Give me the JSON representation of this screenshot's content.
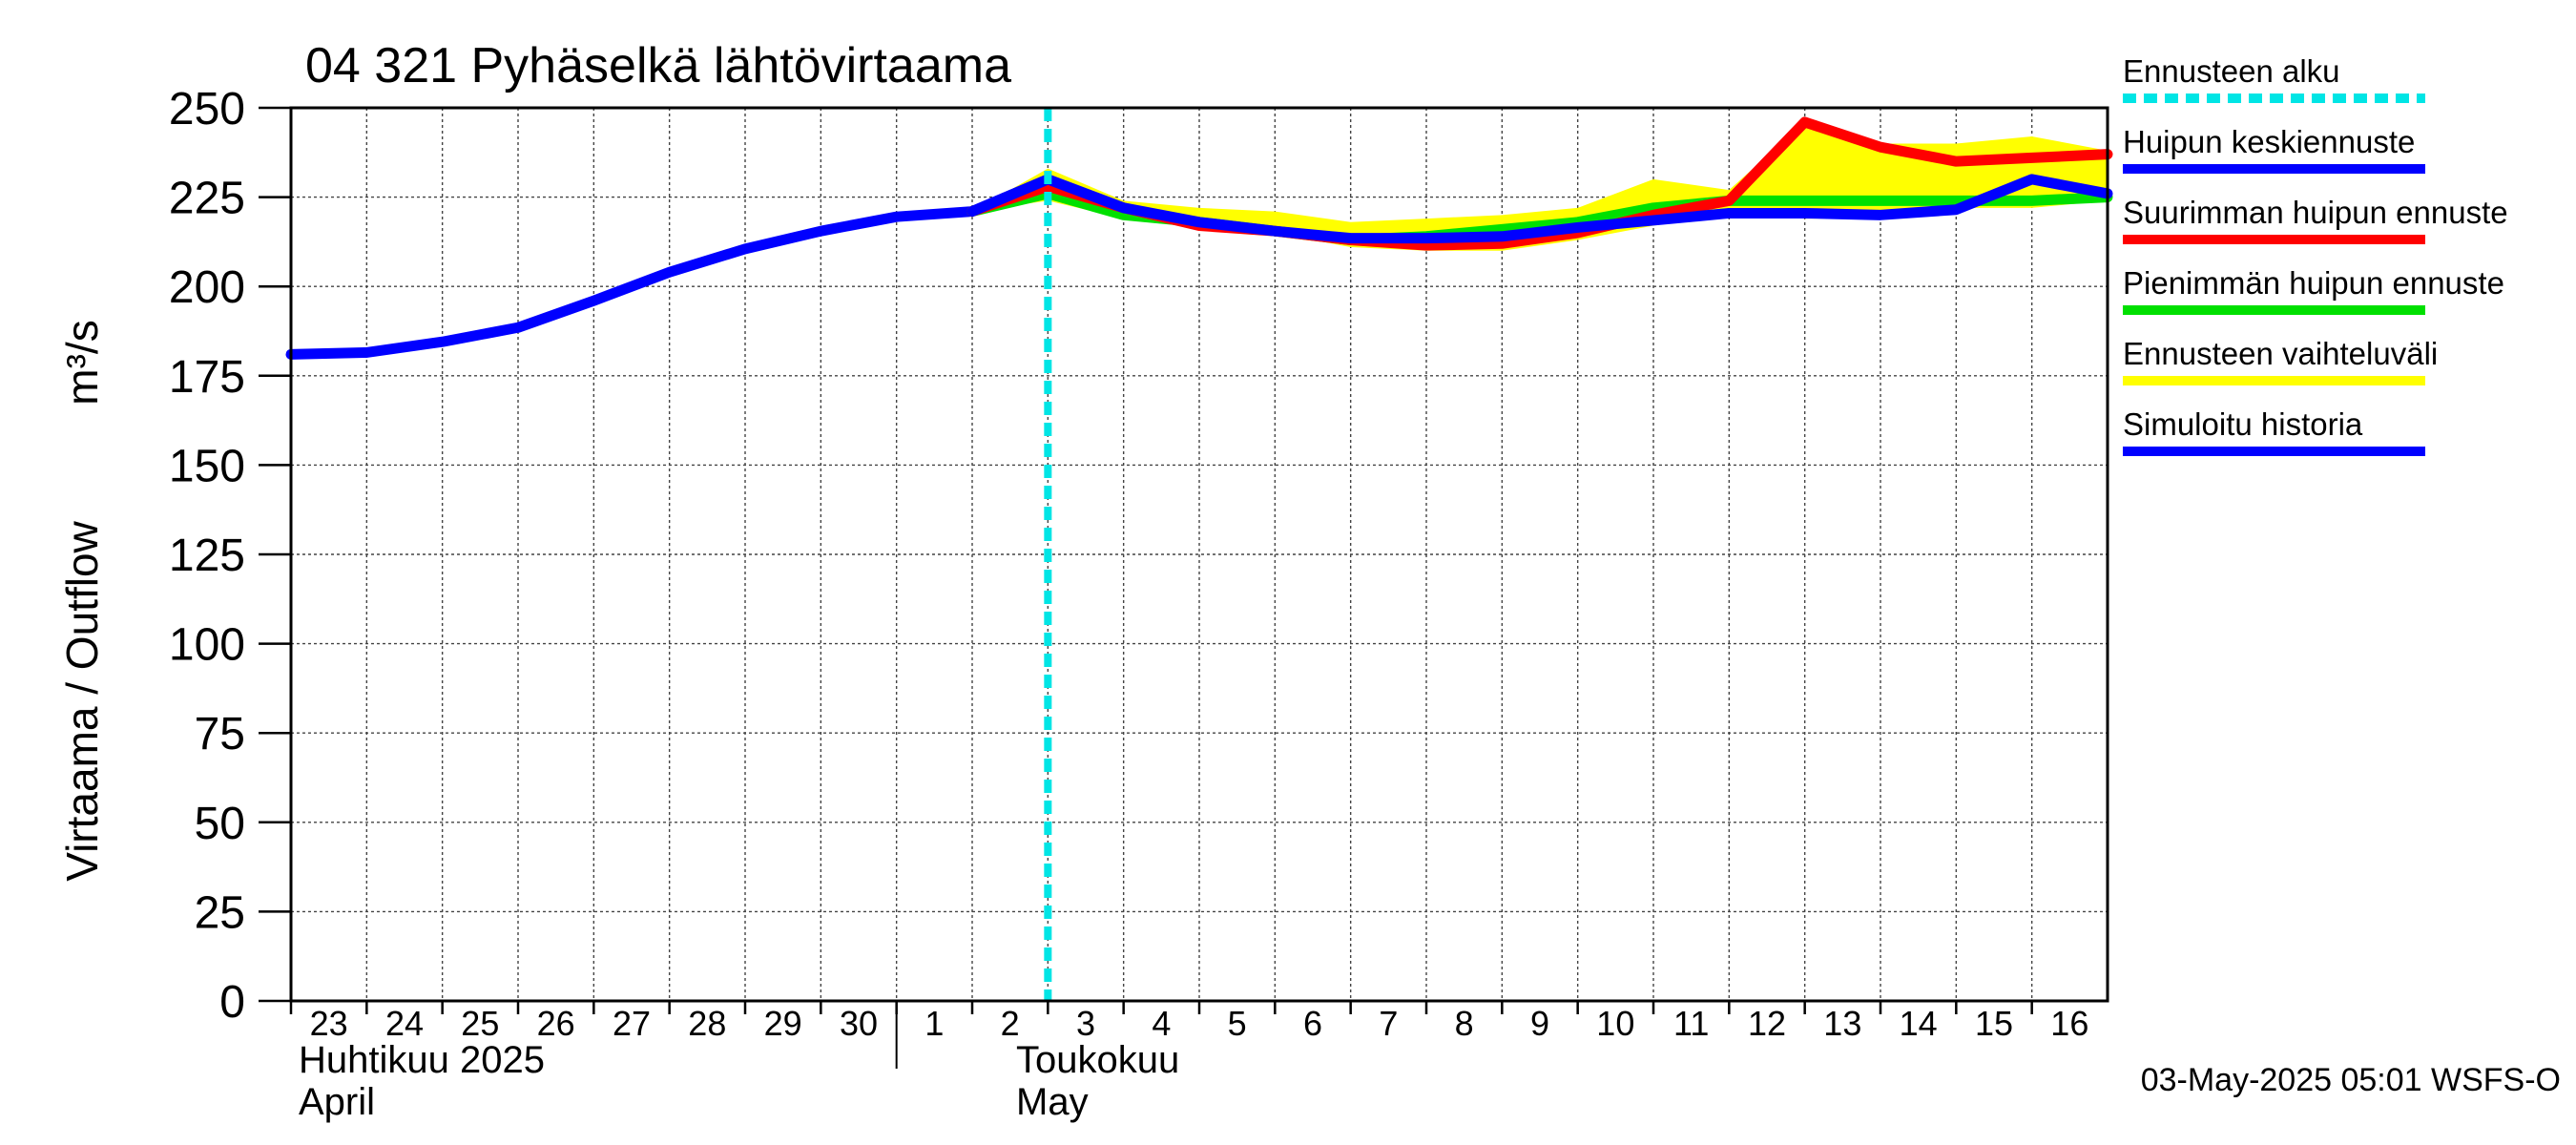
{
  "chart_data": {
    "type": "line",
    "title": "04 321 Pyhäselkä lähtövirtaama",
    "ylabel": "Virtaama / Outflow",
    "yunit": "m³/s",
    "ylim": [
      0,
      250
    ],
    "yticks": [
      0,
      25,
      50,
      75,
      100,
      125,
      150,
      175,
      200,
      225,
      250
    ],
    "xlim": [
      0,
      24
    ],
    "grid": true,
    "day_labels": [
      "23",
      "24",
      "25",
      "26",
      "27",
      "28",
      "29",
      "30",
      "1",
      "2",
      "3",
      "4",
      "5",
      "6",
      "7",
      "8",
      "9",
      "10",
      "11",
      "12",
      "13",
      "14",
      "15",
      "16"
    ],
    "month_labels": [
      {
        "fi": "Huhtikuu  2025",
        "en": "April",
        "day_index": 0
      },
      {
        "fi": "Toukokuu",
        "en": "May",
        "day_index": 9
      }
    ],
    "forecast_start_day": 10.0,
    "legend": {
      "placement": "right",
      "entries": [
        {
          "label": "Ennusteen alku",
          "color": "#00e5e5",
          "style": "dashed"
        },
        {
          "label": "Huipun keskiennuste",
          "color": "#0000ff",
          "style": "solid"
        },
        {
          "label": "Suurimman huipun ennuste",
          "color": "#ff0000",
          "style": "solid"
        },
        {
          "label": "Pienimmän huipun ennuste",
          "color": "#00e000",
          "style": "solid"
        },
        {
          "label": "Ennusteen vaihteluväli",
          "color": "#ffff00",
          "style": "solid"
        },
        {
          "label": "Simuloitu historia",
          "color": "#0000ff",
          "style": "solid"
        }
      ]
    },
    "band": {
      "name": "Ennusteen vaihteluväli",
      "x": [
        9,
        10,
        11,
        12,
        13,
        14,
        15,
        16,
        17,
        18,
        19,
        20,
        21,
        22,
        23,
        24
      ],
      "upper": [
        221,
        233,
        224,
        222,
        221,
        218,
        219,
        220,
        222,
        230,
        227,
        246,
        240,
        240,
        242,
        238
      ],
      "lower": [
        221,
        224,
        219,
        217,
        215,
        211,
        210,
        210,
        213,
        217,
        220,
        219,
        219,
        222,
        222,
        224
      ]
    },
    "series": [
      {
        "name": "Simuloitu historia",
        "color": "#0000ff",
        "x": [
          0,
          1,
          2,
          3,
          4,
          5,
          6,
          7,
          8,
          9,
          10
        ],
        "values": [
          181,
          181.5,
          184.5,
          188.5,
          196,
          204,
          210.5,
          215.5,
          219.5,
          221,
          230
        ]
      },
      {
        "name": "Pienimmän huipun ennuste",
        "color": "#00e000",
        "x": [
          9,
          10,
          11,
          12,
          13,
          14,
          15,
          16,
          17,
          18,
          19,
          20,
          21,
          22,
          23,
          24
        ],
        "values": [
          221,
          226,
          220,
          218,
          215.5,
          213,
          214,
          216,
          218,
          222,
          224,
          224,
          224,
          224,
          224,
          225
        ]
      },
      {
        "name": "Suurimman huipun ennuste",
        "color": "#ff0000",
        "x": [
          9,
          10,
          11,
          12,
          13,
          14,
          15,
          16,
          17,
          18,
          19,
          20,
          21,
          22,
          23,
          24
        ],
        "values": [
          221,
          228,
          222,
          217,
          215.5,
          213,
          211.5,
          212,
          215,
          220,
          224,
          246,
          239,
          235,
          236,
          237
        ]
      },
      {
        "name": "Huipun keskiennuste",
        "color": "#0000ff",
        "x": [
          9,
          10,
          11,
          12,
          13,
          14,
          15,
          16,
          17,
          18,
          19,
          20,
          21,
          22,
          23,
          24
        ],
        "values": [
          221,
          230,
          222,
          218,
          215.5,
          213.5,
          213.5,
          214,
          216.5,
          218.5,
          220.5,
          220.5,
          220,
          221.5,
          230,
          226
        ]
      }
    ]
  },
  "footer": {
    "timestamp": "03-May-2025 05:01 WSFS-O"
  }
}
